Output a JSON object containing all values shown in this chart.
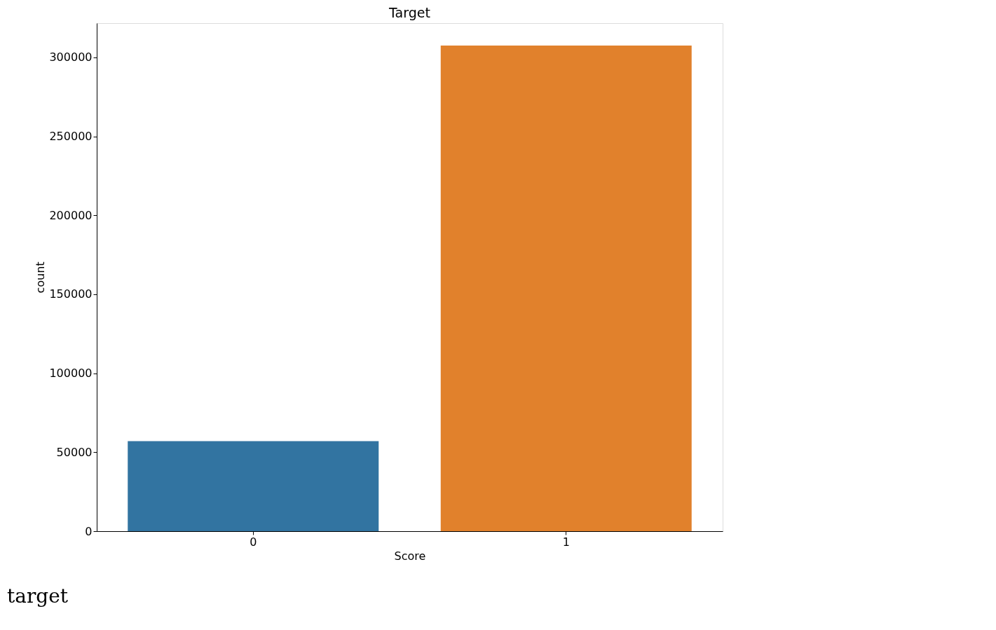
{
  "chart_data": {
    "type": "bar",
    "title": "Target",
    "xlabel": "Score",
    "ylabel": "count",
    "categories": [
      "0",
      "1"
    ],
    "values": [
      57000,
      307500
    ],
    "colors": [
      "#3274a1",
      "#e1812c"
    ],
    "ylim": [
      0,
      321700
    ],
    "yticks": [
      0,
      50000,
      100000,
      150000,
      200000,
      250000,
      300000
    ],
    "grid": false,
    "legend": false,
    "annotations": [
      "target"
    ]
  }
}
